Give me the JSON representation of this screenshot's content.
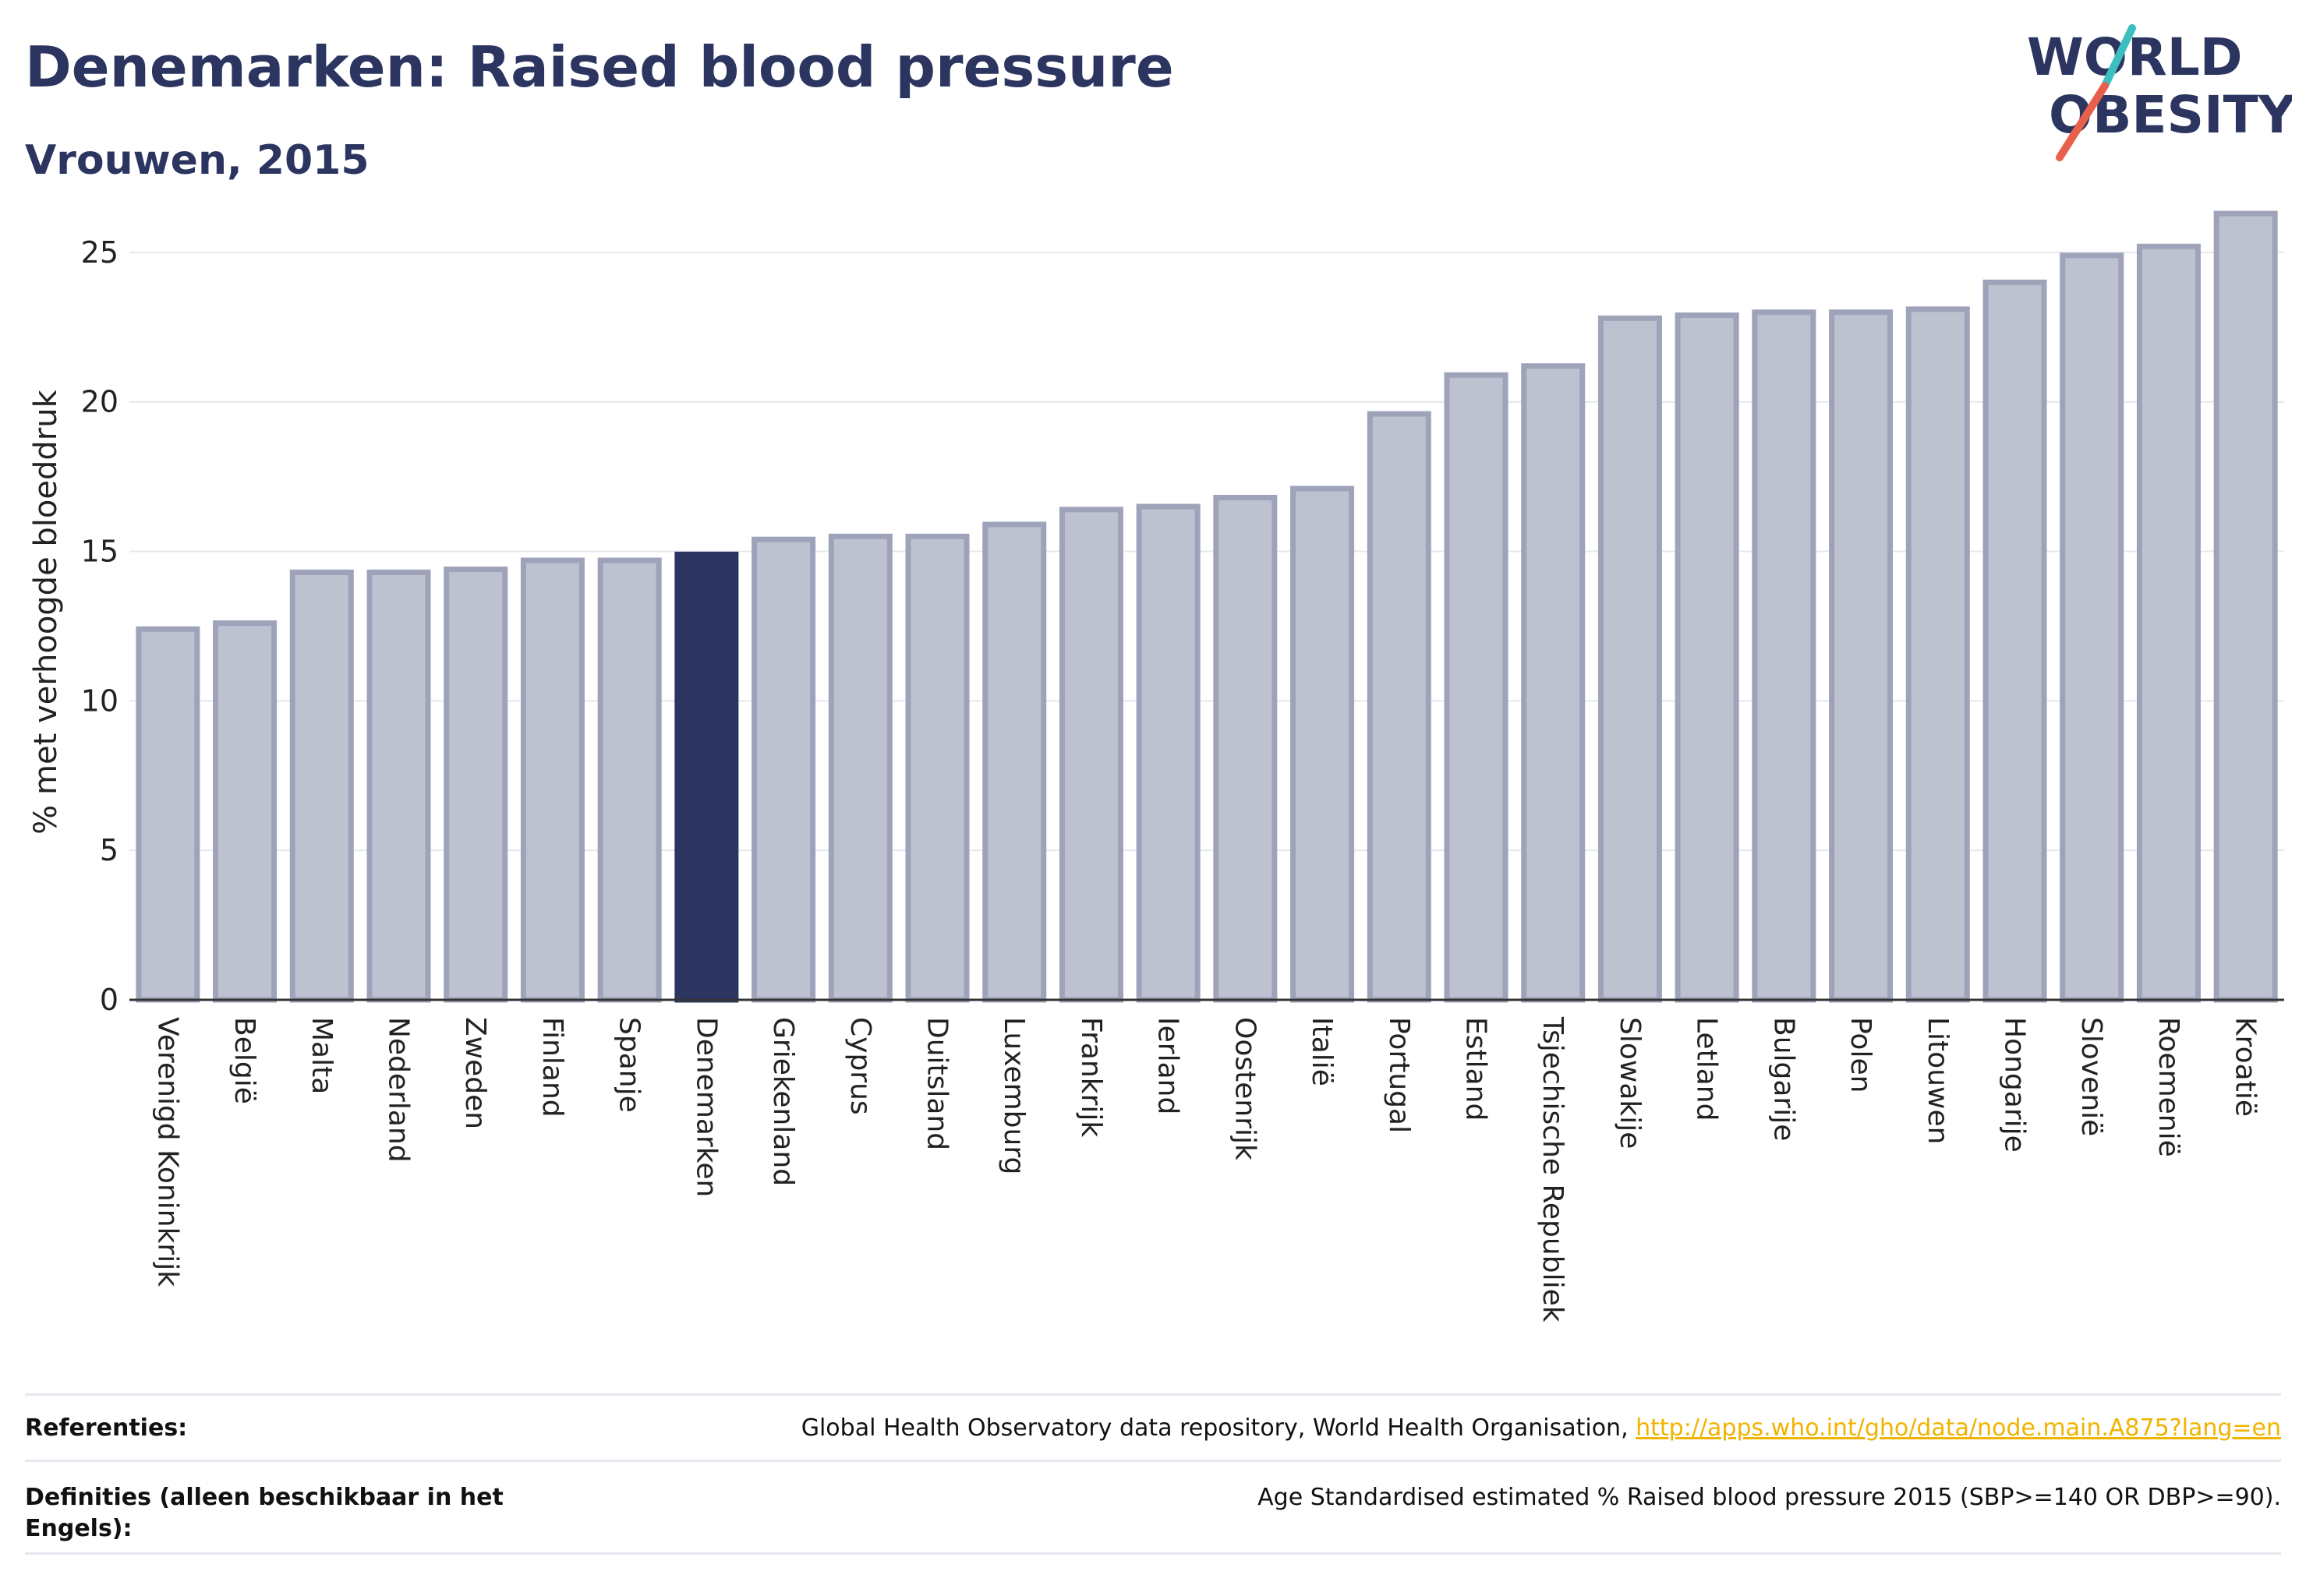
{
  "title": "Denemarken: Raised blood pressure",
  "subtitle": "Vrouwen, 2015",
  "logo": {
    "line1": "WORLD",
    "line2": "OBESITY",
    "accent_colors": [
      "#3cbfbf",
      "#e8604c"
    ]
  },
  "colors": {
    "highlight": "#2b3560",
    "bar_fill": "#bec1cf",
    "bar_stroke": "#9ea3ba"
  },
  "chart_data": {
    "type": "bar",
    "ylabel": "% met verhoogde bloeddruk",
    "ylim": [
      0,
      27.5
    ],
    "yticks": [
      0,
      5,
      10,
      15,
      20,
      25
    ],
    "grid": true,
    "highlight": "Denemarken",
    "categories": [
      "Verenigd Koninkrijk",
      "België",
      "Malta",
      "Nederland",
      "Zweden",
      "Finland",
      "Spanje",
      "Denemarken",
      "Griekenland",
      "Cyprus",
      "Duitsland",
      "Luxemburg",
      "Frankrijk",
      "Ierland",
      "Oostenrijk",
      "Italië",
      "Portugal",
      "Estland",
      "Tsjechische Republiek",
      "Slowakije",
      "Letland",
      "Bulgarije",
      "Polen",
      "Litouwen",
      "Hongarije",
      "Slovenië",
      "Roemenië",
      "Kroatië"
    ],
    "values": [
      12.4,
      12.6,
      14.3,
      14.3,
      14.4,
      14.7,
      14.7,
      14.9,
      15.4,
      15.5,
      15.5,
      15.9,
      16.4,
      16.5,
      16.8,
      17.1,
      19.6,
      20.9,
      21.2,
      22.8,
      22.9,
      23.0,
      23.0,
      23.1,
      24.0,
      24.9,
      25.2,
      26.3
    ]
  },
  "footer": {
    "ref_label": "Referenties:",
    "ref_text": "Global Health Observatory data repository, World Health Organisation, ",
    "ref_link": "http://apps.who.int/gho/data/node.main.A875?lang=en",
    "def_label": "Definities (alleen beschikbaar in het Engels):",
    "def_text": "Age Standardised estimated % Raised blood pressure 2015 (SBP>=140 OR DBP>=90)."
  }
}
